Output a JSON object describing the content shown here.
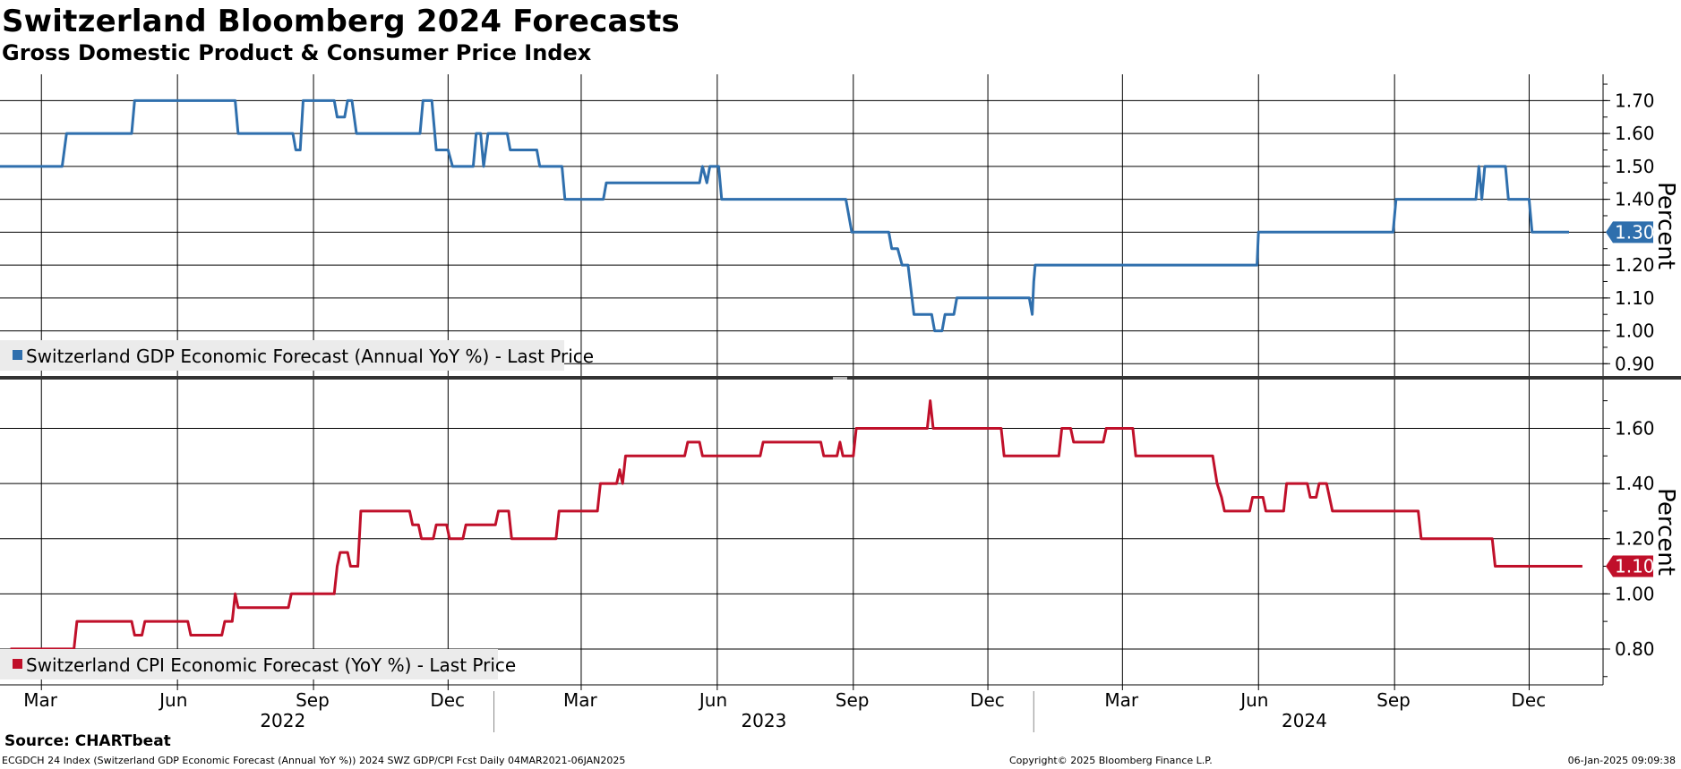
{
  "title": "Switzerland Bloomberg 2024 Forecasts",
  "subtitle": "Gross Domestic Product & Consumer Price Index",
  "source": "Source: CHARTbeat",
  "footer": {
    "left": "ECGDCH 24 Index (Switzerland GDP Economic Forecast (Annual YoY %)) 2024 SWZ GDP/CPI Fcst  Daily 04MAR2021-06JAN2025",
    "center": "Copyright© 2025 Bloomberg Finance L.P.",
    "right": "06-Jan-2025 09:09:38"
  },
  "colors": {
    "gdp": "#2f6fad",
    "cpi": "#c0102a",
    "grid": "#000000",
    "legend_bg": "#ebebeb"
  },
  "x_axis": {
    "months": [
      "Mar",
      "Jun",
      "Sep",
      "Dec",
      "Mar",
      "Jun",
      "Sep",
      "Dec",
      "Mar",
      "Jun",
      "Sep",
      "Dec"
    ],
    "years": [
      "2022",
      "2023",
      "2024"
    ]
  },
  "chart_data": [
    {
      "type": "line",
      "name": "gdp-panel",
      "ylabel": "Percent",
      "y_ticks": [
        "1.70",
        "1.60",
        "1.50",
        "1.40",
        "1.30",
        "1.20",
        "1.10",
        "1.00",
        "0.90"
      ],
      "ylim": [
        0.86,
        1.78
      ],
      "last_value": "1.30",
      "series": [
        {
          "name": "Switzerland GDP Economic Forecast (Annual YoY %) - Last Price",
          "points": [
            [
              "2022-02-01",
              1.5
            ],
            [
              "2022-03-15",
              1.5
            ],
            [
              "2022-03-18",
              1.6
            ],
            [
              "2022-05-01",
              1.6
            ],
            [
              "2022-05-03",
              1.7
            ],
            [
              "2022-07-10",
              1.7
            ],
            [
              "2022-07-12",
              1.6
            ],
            [
              "2022-08-18",
              1.6
            ],
            [
              "2022-08-20",
              1.55
            ],
            [
              "2022-08-23",
              1.55
            ],
            [
              "2022-08-25",
              1.7
            ],
            [
              "2022-09-15",
              1.7
            ],
            [
              "2022-09-17",
              1.65
            ],
            [
              "2022-09-22",
              1.65
            ],
            [
              "2022-09-24",
              1.7
            ],
            [
              "2022-09-27",
              1.7
            ],
            [
              "2022-09-30",
              1.6
            ],
            [
              "2022-11-12",
              1.6
            ],
            [
              "2022-11-14",
              1.7
            ],
            [
              "2022-11-20",
              1.7
            ],
            [
              "2022-11-23",
              1.55
            ],
            [
              "2022-12-01",
              1.55
            ],
            [
              "2022-12-04",
              1.5
            ],
            [
              "2022-12-18",
              1.5
            ],
            [
              "2022-12-20",
              1.6
            ],
            [
              "2022-12-23",
              1.6
            ],
            [
              "2022-12-25",
              1.5
            ],
            [
              "2022-12-28",
              1.6
            ],
            [
              "2023-01-10",
              1.6
            ],
            [
              "2023-01-12",
              1.55
            ],
            [
              "2023-01-30",
              1.55
            ],
            [
              "2023-02-01",
              1.5
            ],
            [
              "2023-02-16",
              1.5
            ],
            [
              "2023-02-18",
              1.4
            ],
            [
              "2023-03-16",
              1.4
            ],
            [
              "2023-03-18",
              1.45
            ],
            [
              "2023-05-20",
              1.45
            ],
            [
              "2023-05-22",
              1.5
            ],
            [
              "2023-05-25",
              1.45
            ],
            [
              "2023-05-27",
              1.5
            ],
            [
              "2023-06-02",
              1.5
            ],
            [
              "2023-06-04",
              1.4
            ],
            [
              "2023-08-27",
              1.4
            ],
            [
              "2023-08-31",
              1.3
            ],
            [
              "2023-09-25",
              1.3
            ],
            [
              "2023-09-27",
              1.25
            ],
            [
              "2023-10-01",
              1.25
            ],
            [
              "2023-10-04",
              1.2
            ],
            [
              "2023-10-08",
              1.2
            ],
            [
              "2023-10-12",
              1.05
            ],
            [
              "2023-10-24",
              1.05
            ],
            [
              "2023-10-26",
              1.0
            ],
            [
              "2023-10-31",
              1.0
            ],
            [
              "2023-11-02",
              1.05
            ],
            [
              "2023-11-08",
              1.05
            ],
            [
              "2023-11-10",
              1.1
            ],
            [
              "2023-12-29",
              1.1
            ],
            [
              "2023-12-31",
              1.05
            ],
            [
              "2024-01-01",
              1.15
            ],
            [
              "2024-01-02",
              1.2
            ],
            [
              "2024-05-31",
              1.2
            ],
            [
              "2024-06-01",
              1.3
            ],
            [
              "2024-08-31",
              1.3
            ],
            [
              "2024-09-02",
              1.4
            ],
            [
              "2024-10-26",
              1.4
            ],
            [
              "2024-10-28",
              1.5
            ],
            [
              "2024-10-30",
              1.4
            ],
            [
              "2024-11-01",
              1.5
            ],
            [
              "2024-11-15",
              1.5
            ],
            [
              "2024-11-17",
              1.4
            ],
            [
              "2024-12-01",
              1.4
            ],
            [
              "2024-12-03",
              1.3
            ],
            [
              "2024-12-28",
              1.3
            ]
          ]
        }
      ]
    },
    {
      "type": "line",
      "name": "cpi-panel",
      "ylabel": "Percent",
      "y_ticks": [
        "1.60",
        "1.40",
        "1.20",
        "1.00",
        "0.80"
      ],
      "ylim": [
        0.67,
        1.78
      ],
      "last_value": "1.10",
      "series": [
        {
          "name": "Switzerland CPI Economic Forecast (YoY %) - Last Price",
          "points": [
            [
              "2022-02-08",
              0.8
            ],
            [
              "2022-03-23",
              0.8
            ],
            [
              "2022-03-25",
              0.9
            ],
            [
              "2022-05-01",
              0.9
            ],
            [
              "2022-05-03",
              0.85
            ],
            [
              "2022-05-08",
              0.85
            ],
            [
              "2022-05-10",
              0.9
            ],
            [
              "2022-06-08",
              0.9
            ],
            [
              "2022-06-10",
              0.85
            ],
            [
              "2022-07-01",
              0.85
            ],
            [
              "2022-07-03",
              0.9
            ],
            [
              "2022-07-08",
              0.9
            ],
            [
              "2022-07-10",
              1.0
            ],
            [
              "2022-07-12",
              0.95
            ],
            [
              "2022-08-15",
              0.95
            ],
            [
              "2022-08-17",
              1.0
            ],
            [
              "2022-09-15",
              1.0
            ],
            [
              "2022-09-17",
              1.1
            ],
            [
              "2022-09-19",
              1.15
            ],
            [
              "2022-09-24",
              1.15
            ],
            [
              "2022-09-26",
              1.1
            ],
            [
              "2022-10-01",
              1.1
            ],
            [
              "2022-10-03",
              1.3
            ],
            [
              "2022-11-05",
              1.3
            ],
            [
              "2022-11-07",
              1.25
            ],
            [
              "2022-11-11",
              1.25
            ],
            [
              "2022-11-13",
              1.2
            ],
            [
              "2022-11-21",
              1.2
            ],
            [
              "2022-11-23",
              1.25
            ],
            [
              "2022-11-30",
              1.25
            ],
            [
              "2022-12-02",
              1.2
            ],
            [
              "2022-12-11",
              1.2
            ],
            [
              "2022-12-13",
              1.25
            ],
            [
              "2023-01-02",
              1.25
            ],
            [
              "2023-01-04",
              1.3
            ],
            [
              "2023-01-11",
              1.3
            ],
            [
              "2023-01-13",
              1.2
            ],
            [
              "2023-02-12",
              1.2
            ],
            [
              "2023-02-14",
              1.3
            ],
            [
              "2023-03-12",
              1.3
            ],
            [
              "2023-03-14",
              1.4
            ],
            [
              "2023-03-25",
              1.4
            ],
            [
              "2023-03-27",
              1.45
            ],
            [
              "2023-03-29",
              1.4
            ],
            [
              "2023-03-31",
              1.5
            ],
            [
              "2023-05-10",
              1.5
            ],
            [
              "2023-05-12",
              1.55
            ],
            [
              "2023-05-20",
              1.55
            ],
            [
              "2023-05-22",
              1.5
            ],
            [
              "2023-06-30",
              1.5
            ],
            [
              "2023-07-02",
              1.55
            ],
            [
              "2023-08-10",
              1.55
            ],
            [
              "2023-08-12",
              1.5
            ],
            [
              "2023-08-21",
              1.5
            ],
            [
              "2023-08-23",
              1.55
            ],
            [
              "2023-08-25",
              1.5
            ],
            [
              "2023-09-01",
              1.5
            ],
            [
              "2023-09-03",
              1.6
            ],
            [
              "2023-10-21",
              1.6
            ],
            [
              "2023-10-23",
              1.7
            ],
            [
              "2023-10-25",
              1.6
            ],
            [
              "2023-12-10",
              1.6
            ],
            [
              "2023-12-12",
              1.5
            ],
            [
              "2024-01-18",
              1.5
            ],
            [
              "2024-01-20",
              1.6
            ],
            [
              "2024-01-26",
              1.6
            ],
            [
              "2024-01-28",
              1.55
            ],
            [
              "2024-02-17",
              1.55
            ],
            [
              "2024-02-19",
              1.6
            ],
            [
              "2024-03-08",
              1.6
            ],
            [
              "2024-03-10",
              1.5
            ],
            [
              "2024-05-01",
              1.5
            ],
            [
              "2024-05-04",
              1.4
            ],
            [
              "2024-05-07",
              1.35
            ],
            [
              "2024-05-09",
              1.3
            ],
            [
              "2024-05-26",
              1.3
            ],
            [
              "2024-05-28",
              1.35
            ],
            [
              "2024-06-04",
              1.35
            ],
            [
              "2024-06-06",
              1.3
            ],
            [
              "2024-06-18",
              1.3
            ],
            [
              "2024-06-20",
              1.4
            ],
            [
              "2024-07-04",
              1.4
            ],
            [
              "2024-07-06",
              1.35
            ],
            [
              "2024-07-10",
              1.35
            ],
            [
              "2024-07-12",
              1.4
            ],
            [
              "2024-07-17",
              1.4
            ],
            [
              "2024-07-19",
              1.35
            ],
            [
              "2024-07-21",
              1.3
            ],
            [
              "2024-09-17",
              1.3
            ],
            [
              "2024-09-19",
              1.2
            ],
            [
              "2024-11-06",
              1.2
            ],
            [
              "2024-11-08",
              1.1
            ],
            [
              "2025-01-06",
              1.1
            ]
          ]
        }
      ]
    }
  ]
}
